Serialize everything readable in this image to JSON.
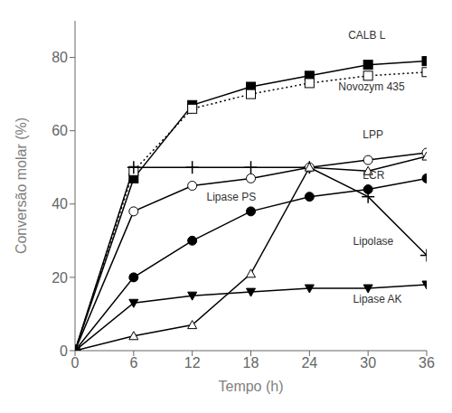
{
  "chart_data": {
    "type": "line",
    "title": "",
    "xlabel": "Tempo (h)",
    "ylabel": "Conversão molar (%)",
    "x": [
      0,
      6,
      12,
      18,
      24,
      30,
      36
    ],
    "xlim": [
      0,
      36
    ],
    "ylim": [
      0,
      90
    ],
    "xticks": [
      0,
      6,
      12,
      18,
      24,
      30,
      36
    ],
    "yticks": [
      0,
      20,
      40,
      60,
      80
    ],
    "grid": false,
    "series": [
      {
        "name": "CALB L",
        "color": "black",
        "marker": "square",
        "line_style": "solid",
        "values": [
          0,
          47,
          67,
          72,
          75,
          78,
          79
        ]
      },
      {
        "name": "Novozym 435",
        "color": "black",
        "marker": "square-open",
        "line_style": "dotted",
        "values": [
          0,
          49,
          66,
          70,
          73,
          75,
          76
        ]
      },
      {
        "name": "Lipolase",
        "color": "black",
        "marker": "plus",
        "line_style": "solid",
        "values": [
          0,
          50,
          50,
          50,
          50,
          42,
          26
        ]
      },
      {
        "name": "LCR",
        "color": "black",
        "marker": "circle-open",
        "line_style": "solid",
        "values": [
          0,
          38,
          45,
          47,
          50,
          52,
          54
        ]
      },
      {
        "name": "Lipase PS",
        "color": "black",
        "marker": "circle",
        "line_style": "solid",
        "values": [
          0,
          20,
          30,
          38,
          42,
          44,
          47
        ]
      },
      {
        "name": "LPP",
        "color": "black",
        "marker": "triangle-up-open",
        "line_style": "solid",
        "values": [
          0,
          4,
          7,
          21,
          50,
          49,
          53
        ]
      },
      {
        "name": "Lipase AK",
        "color": "black",
        "marker": "triangle-down",
        "line_style": "solid",
        "values": [
          0,
          13,
          15,
          16,
          17,
          17,
          18
        ]
      }
    ],
    "annotations": [
      {
        "text": "CALB L",
        "x": 27.5,
        "y": 86
      },
      {
        "text": "Novozym 435",
        "x": 26.5,
        "y": 72
      },
      {
        "text": "Lipolase",
        "x": 28,
        "y": 30
      },
      {
        "text": "LCR",
        "x": 29,
        "y": 48
      },
      {
        "text": "Lipase PS",
        "x": 13,
        "y": 42
      },
      {
        "text": "LPP",
        "x": 29,
        "y": 59
      },
      {
        "text": "Lipase AK",
        "x": 28,
        "y": 14
      }
    ]
  }
}
